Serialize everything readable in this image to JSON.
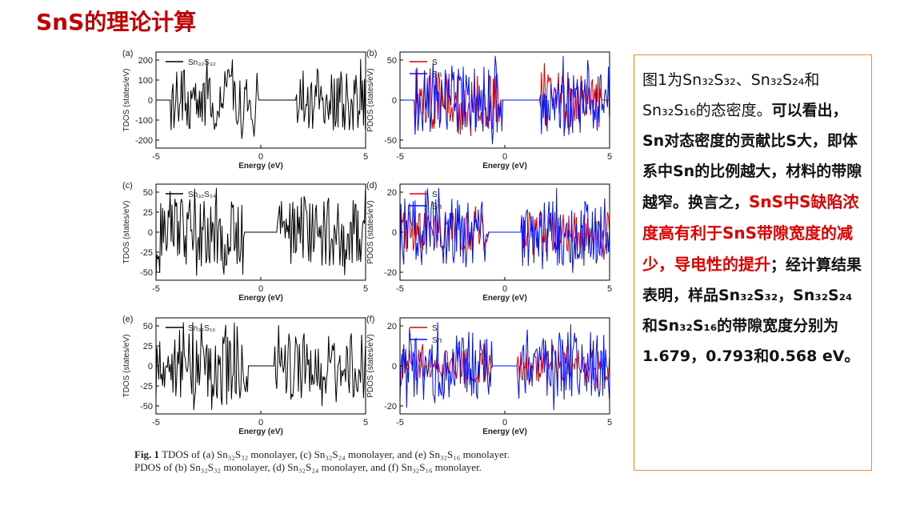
{
  "slide": {
    "title": "SnS的理论计算"
  },
  "panels": [
    {
      "label": "(a)",
      "ylabel": "TDOS (states/eV)",
      "xlabel": "Energy (eV)",
      "legend": [
        {
          "text": "Sn₃₂S₃₂",
          "color": "#000000"
        }
      ],
      "yticks": [
        "200",
        "100",
        "0",
        "-100",
        "-200"
      ],
      "xticks": [
        "-5",
        "0",
        "5"
      ]
    },
    {
      "label": "(b)",
      "ylabel": "PDOS (states/eV)",
      "xlabel": "Energy (eV)",
      "legend": [
        {
          "text": "S",
          "color": "#e00000"
        },
        {
          "text": "Sn",
          "color": "#0010ff"
        }
      ],
      "yticks": [
        "50",
        "0",
        "-50"
      ],
      "xticks": [
        "-5",
        "0",
        "5"
      ]
    },
    {
      "label": "(c)",
      "ylabel": "TDOS (states/eV)",
      "xlabel": "Energy (eV)",
      "legend": [
        {
          "text": "Sn₃₂S₂₄",
          "color": "#000000"
        }
      ],
      "yticks": [
        "50",
        "25",
        "0",
        "-25",
        "-50"
      ],
      "xticks": [
        "-5",
        "0",
        "5"
      ]
    },
    {
      "label": "(d)",
      "ylabel": "PDOS (states/eV)",
      "xlabel": "Energy (eV)",
      "legend": [
        {
          "text": "S",
          "color": "#e00000"
        },
        {
          "text": "Sn",
          "color": "#0010ff"
        }
      ],
      "yticks": [
        "20",
        "0",
        "-20"
      ],
      "xticks": [
        "-5",
        "0",
        "5"
      ]
    },
    {
      "label": "(e)",
      "ylabel": "TDOS (states/eV)",
      "xlabel": "Energy (eV)",
      "legend": [
        {
          "text": "Sn₃₂S₁₆",
          "color": "#000000"
        }
      ],
      "yticks": [
        "50",
        "25",
        "0",
        "-25",
        "-50"
      ],
      "xticks": [
        "-5",
        "0",
        "5"
      ]
    },
    {
      "label": "(f)",
      "ylabel": "PDOS (states/eV)",
      "xlabel": "Energy (eV)",
      "legend": [
        {
          "text": "S",
          "color": "#e00000"
        },
        {
          "text": "Sn",
          "color": "#0010ff"
        }
      ],
      "yticks": [
        "20",
        "0",
        "-20"
      ],
      "xticks": [
        "-5",
        "0",
        "5"
      ]
    }
  ],
  "caption": {
    "fig": "Fig. 1",
    "line1": " TDOS of (a) Sn₃₂S₃₂ monolayer, (c) Sn₃₂S₂₄ monolayer, and (e) Sn₃₂S₁₆ monolayer.",
    "line2": "PDOS of (b) Sn₃₂S₃₂ monolayer, (d) Sn₃₂S₂₄ monolayer, and (f) Sn₃₂S₁₆ monolayer."
  },
  "textbox": {
    "p1": "图1为Sn₃₂S₃₂、Sn₃₂S₂₄和Sn₃₂S₁₆的态密度。",
    "p2": "可以看出，Sn对态密度的贡献比S大，即体系中Sn的比例越大，材料的带隙越窄。换言之，",
    "p3": "SnS中S缺陷浓度高有利于SnS带隙宽度的减少，导电性的提升",
    "p4": "；经计算结果表明，样品Sn₃₂S₃₂，Sn₃₂S₂₄和Sn₃₂S₁₆的带隙宽度分别为1.679，0.793和0.568 eV。"
  },
  "colors": {
    "title": "#c00000",
    "emphasis": "#e00000",
    "box_border": "#ef8a3a",
    "s_series": "#e00000",
    "sn_series": "#0010ff"
  },
  "chart_data": [
    {
      "type": "line",
      "panel": "(a)",
      "xlim": [
        -5,
        5
      ],
      "ylim": [
        -220,
        220
      ],
      "xlabel": "Energy (eV)",
      "ylabel": "TDOS (states/eV)",
      "series": [
        {
          "name": "Sn₃₂S₃₂",
          "color": "#000000",
          "bands": [
            [
              -4.3,
              -0.1
            ],
            [
              1.7,
              5.0
            ]
          ],
          "amp": 140
        }
      ]
    },
    {
      "type": "line",
      "panel": "(b)",
      "xlim": [
        -5,
        5
      ],
      "ylim": [
        -75,
        75
      ],
      "xlabel": "Energy (eV)",
      "ylabel": "PDOS (states/eV)",
      "series": [
        {
          "name": "S",
          "color": "#e00000",
          "bands": [
            [
              -4.3,
              -0.2
            ],
            [
              1.7,
              4.6
            ]
          ],
          "amp": 45
        },
        {
          "name": "Sn",
          "color": "#0010ff",
          "bands": [
            [
              -4.3,
              -0.1
            ],
            [
              1.7,
              5.0
            ]
          ],
          "amp": 55
        }
      ]
    },
    {
      "type": "line",
      "panel": "(c)",
      "xlim": [
        -5,
        5
      ],
      "ylim": [
        -60,
        60
      ],
      "xlabel": "Energy (eV)",
      "ylabel": "TDOS (states/eV)",
      "series": [
        {
          "name": "Sn₃₂S₂₄",
          "color": "#000000",
          "bands": [
            [
              -5.0,
              -0.8
            ],
            [
              0.8,
              5.0
            ]
          ],
          "amp": 45
        }
      ]
    },
    {
      "type": "line",
      "panel": "(d)",
      "xlim": [
        -5,
        5
      ],
      "ylim": [
        -28,
        28
      ],
      "xlabel": "Energy (eV)",
      "ylabel": "PDOS (states/eV)",
      "series": [
        {
          "name": "S",
          "color": "#e00000",
          "bands": [
            [
              -5.0,
              -0.8
            ],
            [
              0.8,
              5.0
            ]
          ],
          "amp": 12
        },
        {
          "name": "Sn",
          "color": "#0010ff",
          "bands": [
            [
              -5.0,
              -0.8
            ],
            [
              0.8,
              5.0
            ]
          ],
          "amp": 20
        }
      ]
    },
    {
      "type": "line",
      "panel": "(e)",
      "xlim": [
        -5,
        5
      ],
      "ylim": [
        -60,
        60
      ],
      "xlabel": "Energy (eV)",
      "ylabel": "TDOS (states/eV)",
      "series": [
        {
          "name": "Sn₃₂S₁₆",
          "color": "#000000",
          "bands": [
            [
              -5.0,
              -0.6
            ],
            [
              0.6,
              5.0
            ]
          ],
          "amp": 42
        }
      ]
    },
    {
      "type": "line",
      "panel": "(f)",
      "xlim": [
        -5,
        5
      ],
      "ylim": [
        -28,
        28
      ],
      "xlabel": "Energy (eV)",
      "ylabel": "PDOS (states/eV)",
      "series": [
        {
          "name": "S",
          "color": "#e00000",
          "bands": [
            [
              -5.0,
              -0.6
            ],
            [
              0.6,
              5.0
            ]
          ],
          "amp": 10
        },
        {
          "name": "Sn",
          "color": "#0010ff",
          "bands": [
            [
              -5.0,
              -0.6
            ],
            [
              0.6,
              5.0
            ]
          ],
          "amp": 20
        }
      ]
    }
  ]
}
